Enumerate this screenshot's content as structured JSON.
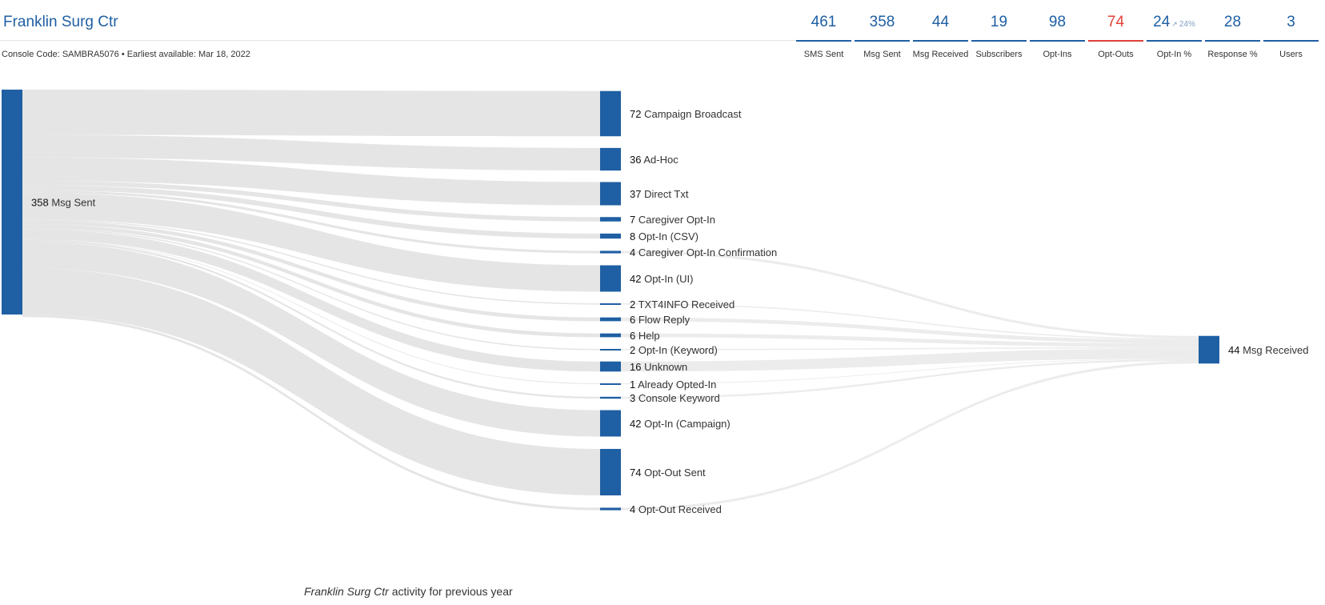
{
  "header": {
    "title": "Franklin Surg Ctr",
    "console_code": "Console Code: SAMBRA5076",
    "bullet": "•",
    "earliest": "Earliest available: Mar 18, 2022"
  },
  "stats": [
    {
      "value": "461",
      "label": "SMS Sent",
      "status": "normal"
    },
    {
      "value": "358",
      "label": "Msg Sent",
      "status": "normal"
    },
    {
      "value": "44",
      "label": "Msg Received",
      "status": "normal"
    },
    {
      "value": "19",
      "label": "Subscribers",
      "status": "normal"
    },
    {
      "value": "98",
      "label": "Opt-Ins",
      "status": "normal"
    },
    {
      "value": "74",
      "label": "Opt-Outs",
      "status": "alert"
    },
    {
      "value": "24",
      "label": "Opt-In %",
      "status": "normal",
      "trend_icon": "trend-up-icon",
      "secondary": "24%"
    },
    {
      "value": "28",
      "label": "Response %",
      "status": "normal"
    },
    {
      "value": "3",
      "label": "Users",
      "status": "normal"
    }
  ],
  "colors": {
    "brand": "#1f5fa3",
    "alert": "#e0413a",
    "node": "#1f5fa3",
    "link": "#e4e4e4",
    "link_secondary": "#ebebeb"
  },
  "chart_data": {
    "type": "sankey",
    "source": {
      "name": "Msg Sent",
      "value": 358
    },
    "target": {
      "name": "Msg Received",
      "value": 44
    },
    "categories": [
      {
        "name": "Campaign Broadcast",
        "value": 72,
        "flows_to_received": 0
      },
      {
        "name": "Ad-Hoc",
        "value": 36,
        "flows_to_received": 0
      },
      {
        "name": "Direct Txt",
        "value": 37,
        "flows_to_received": 0
      },
      {
        "name": "Caregiver Opt-In",
        "value": 7,
        "flows_to_received": 0
      },
      {
        "name": "Opt-In (CSV)",
        "value": 8,
        "flows_to_received": 0
      },
      {
        "name": "Caregiver Opt-In Confirmation",
        "value": 4,
        "flows_to_received": 4
      },
      {
        "name": "Opt-In (UI)",
        "value": 42,
        "flows_to_received": 0
      },
      {
        "name": "TXT4INFO Received",
        "value": 2,
        "flows_to_received": 2
      },
      {
        "name": "Flow Reply",
        "value": 6,
        "flows_to_received": 6
      },
      {
        "name": "Help",
        "value": 6,
        "flows_to_received": 6
      },
      {
        "name": "Opt-In (Keyword)",
        "value": 2,
        "flows_to_received": 2
      },
      {
        "name": "Unknown",
        "value": 16,
        "flows_to_received": 16
      },
      {
        "name": "Already Opted-In",
        "value": 1,
        "flows_to_received": 1
      },
      {
        "name": "Console Keyword",
        "value": 3,
        "flows_to_received": 3
      },
      {
        "name": "Opt-In (Campaign)",
        "value": 42,
        "flows_to_received": 0
      },
      {
        "name": "Opt-Out Sent",
        "value": 74,
        "flows_to_received": 0
      },
      {
        "name": "Opt-Out Received",
        "value": 4,
        "flows_to_received": 4
      }
    ]
  },
  "footer": {
    "italic": "Franklin Surg Ctr",
    "text": " activity for previous year"
  }
}
